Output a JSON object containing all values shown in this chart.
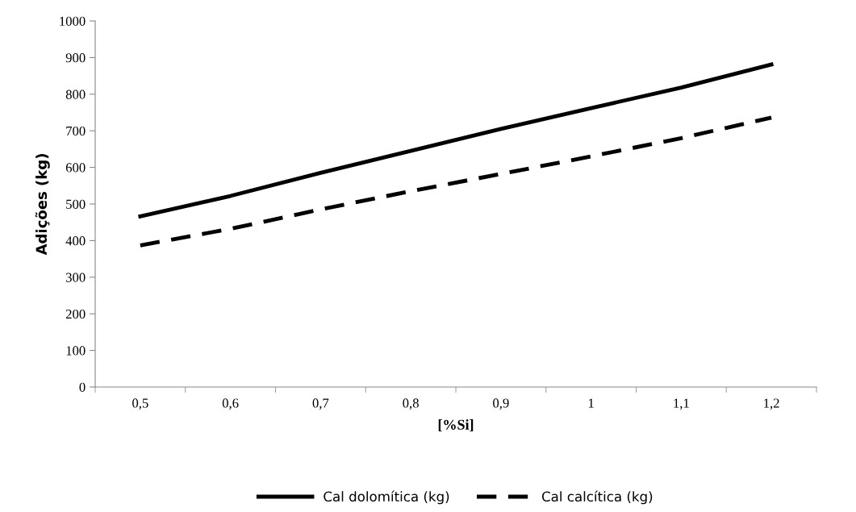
{
  "chart_data": {
    "type": "line",
    "xlabel": "[%Si]",
    "ylabel": "Adições (kg)",
    "categories": [
      "0,5",
      "0,6",
      "0,7",
      "0,8",
      "0,9",
      "1",
      "1,1",
      "1,2"
    ],
    "series": [
      {
        "name": "Cal dolomítica (kg)",
        "color": "#000000",
        "line_style": "solid",
        "values": [
          466,
          522,
          585,
          645,
          705,
          762,
          818,
          881
        ]
      },
      {
        "name": "Cal calcítica (kg)",
        "color": "#000000",
        "line_style": "dashed",
        "values": [
          387,
          432,
          485,
          535,
          582,
          630,
          680,
          736
        ]
      }
    ],
    "ylim": [
      0,
      1000
    ],
    "yticks": [
      0,
      100,
      200,
      300,
      400,
      500,
      600,
      700,
      800,
      900,
      1000
    ],
    "grid": false,
    "legend": "bottom",
    "marker": "none"
  }
}
